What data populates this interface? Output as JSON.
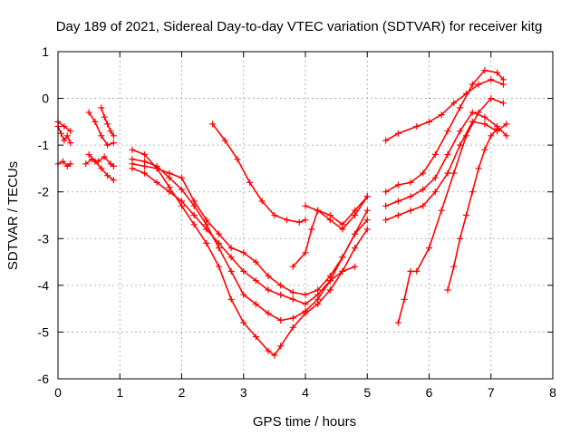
{
  "chart_data": {
    "type": "scatter",
    "title": "Day 189 of 2021, Sidereal Day-to-day VTEC variation (SDTVAR) for receiver kitg",
    "xlabel": "GPS time / hours",
    "ylabel": "SDTVAR / TECUs",
    "xlim": [
      0,
      8
    ],
    "ylim": [
      -6,
      1
    ],
    "xticks": [
      0,
      1,
      2,
      3,
      4,
      5,
      6,
      7,
      8
    ],
    "yticks": [
      -6,
      -5,
      -4,
      -3,
      -2,
      -1,
      0,
      1
    ],
    "grid": true,
    "marker": "+",
    "color": "#ff0000",
    "series": [
      {
        "x": [
          0.0,
          0.05,
          0.1,
          0.15,
          0.2
        ],
        "y": [
          -0.6,
          -0.75,
          -0.9,
          -0.8,
          -0.95
        ]
      },
      {
        "x": [
          0.0,
          0.08,
          0.15,
          0.2
        ],
        "y": [
          -1.4,
          -1.35,
          -1.45,
          -1.4
        ]
      },
      {
        "x": [
          0.0,
          0.1,
          0.2
        ],
        "y": [
          -0.5,
          -0.6,
          -0.7
        ]
      },
      {
        "x": [
          0.5,
          0.6,
          0.7,
          0.8,
          0.9
        ],
        "y": [
          -0.3,
          -0.5,
          -0.8,
          -1.0,
          -0.95
        ]
      },
      {
        "x": [
          0.5,
          0.6,
          0.7,
          0.8,
          0.9
        ],
        "y": [
          -1.2,
          -1.35,
          -1.5,
          -1.65,
          -1.75
        ]
      },
      {
        "x": [
          0.45,
          0.55,
          0.65,
          0.75,
          0.85,
          0.9
        ],
        "y": [
          -1.4,
          -1.3,
          -1.35,
          -1.25,
          -1.4,
          -1.45
        ]
      },
      {
        "x": [
          0.7,
          0.75,
          0.8,
          0.85,
          0.9
        ],
        "y": [
          -0.2,
          -0.4,
          -0.55,
          -0.7,
          -0.8
        ]
      },
      {
        "x": [
          1.2,
          1.4,
          1.6,
          1.8,
          2.0,
          2.2,
          2.4,
          2.6,
          2.8,
          3.0,
          3.2,
          3.4,
          3.5,
          3.6,
          3.8,
          4.0,
          4.2,
          4.4,
          4.6,
          4.8,
          5.0
        ],
        "y": [
          -1.1,
          -1.2,
          -1.5,
          -1.9,
          -2.3,
          -2.7,
          -3.1,
          -3.6,
          -4.3,
          -4.8,
          -5.1,
          -5.4,
          -5.5,
          -5.3,
          -4.9,
          -4.6,
          -4.4,
          -4.1,
          -3.7,
          -3.2,
          -2.8
        ]
      },
      {
        "x": [
          1.2,
          1.4,
          1.6,
          1.8,
          2.0,
          2.2,
          2.4,
          2.6,
          2.8,
          3.0,
          3.2,
          3.4,
          3.6,
          3.8,
          4.0,
          4.2,
          4.4,
          4.6,
          4.8,
          5.0
        ],
        "y": [
          -1.3,
          -1.35,
          -1.45,
          -1.7,
          -1.95,
          -2.3,
          -2.7,
          -3.2,
          -3.7,
          -4.2,
          -4.4,
          -4.6,
          -4.75,
          -4.7,
          -4.55,
          -4.3,
          -3.9,
          -3.4,
          -2.9,
          -2.4
        ]
      },
      {
        "x": [
          1.2,
          1.4,
          1.6,
          1.8,
          2.0,
          2.2,
          2.4,
          2.6,
          2.8,
          3.0,
          3.2,
          3.4,
          3.6,
          3.8,
          4.0,
          4.2,
          4.4,
          4.6,
          4.8,
          5.0
        ],
        "y": [
          -1.4,
          -1.45,
          -1.5,
          -1.6,
          -1.7,
          -2.2,
          -2.6,
          -2.9,
          -3.2,
          -3.3,
          -3.5,
          -3.8,
          -4.0,
          -4.15,
          -4.2,
          -4.1,
          -3.8,
          -3.4,
          -2.9,
          -2.6
        ]
      },
      {
        "x": [
          1.2,
          1.4,
          1.6,
          1.8,
          2.0,
          2.2,
          2.4,
          2.6,
          2.8,
          3.0,
          3.2,
          3.4,
          3.6,
          3.8,
          4.0,
          4.2,
          4.4,
          4.6,
          4.8
        ],
        "y": [
          -1.5,
          -1.6,
          -1.8,
          -2.0,
          -2.2,
          -2.5,
          -2.8,
          -3.1,
          -3.4,
          -3.7,
          -3.9,
          -4.1,
          -4.2,
          -4.3,
          -4.4,
          -4.2,
          -3.9,
          -3.7,
          -3.6
        ]
      },
      {
        "x": [
          2.5,
          2.7,
          2.9,
          3.1,
          3.3,
          3.5,
          3.7,
          3.9,
          4.0
        ],
        "y": [
          -0.55,
          -0.9,
          -1.3,
          -1.8,
          -2.2,
          -2.5,
          -2.6,
          -2.65,
          -2.6
        ]
      },
      {
        "x": [
          3.8,
          4.0,
          4.1,
          4.2,
          4.4,
          4.6,
          4.8,
          5.0
        ],
        "y": [
          -3.6,
          -3.3,
          -2.8,
          -2.4,
          -2.5,
          -2.7,
          -2.4,
          -2.1
        ]
      },
      {
        "x": [
          4.0,
          4.2,
          4.4,
          4.6,
          4.8,
          5.0
        ],
        "y": [
          -2.3,
          -2.4,
          -2.6,
          -2.8,
          -2.5,
          -2.1
        ]
      },
      {
        "x": [
          5.3,
          5.5,
          5.8,
          6.0,
          6.2,
          6.4,
          6.6,
          6.8,
          7.0,
          7.2
        ],
        "y": [
          -0.9,
          -0.75,
          -0.6,
          -0.5,
          -0.35,
          -0.1,
          0.1,
          0.3,
          0.4,
          0.3
        ]
      },
      {
        "x": [
          5.3,
          5.5,
          5.7,
          5.9,
          6.1,
          6.3,
          6.5,
          6.7,
          6.9,
          7.1,
          7.2
        ],
        "y": [
          -2.0,
          -1.85,
          -1.8,
          -1.6,
          -1.2,
          -0.7,
          -0.2,
          0.3,
          0.6,
          0.55,
          0.4
        ]
      },
      {
        "x": [
          5.3,
          5.5,
          5.7,
          5.9,
          6.1,
          6.3,
          6.5,
          6.7,
          6.9,
          7.1,
          7.25
        ],
        "y": [
          -2.3,
          -2.2,
          -2.1,
          -1.95,
          -1.7,
          -1.2,
          -0.7,
          -0.3,
          -0.4,
          -0.6,
          -0.8
        ]
      },
      {
        "x": [
          5.3,
          5.5,
          5.7,
          5.9,
          6.1,
          6.3,
          6.5,
          6.7,
          6.9,
          7.1,
          7.25
        ],
        "y": [
          -2.6,
          -2.5,
          -2.4,
          -2.3,
          -2.0,
          -1.6,
          -1.0,
          -0.5,
          -0.55,
          -0.7,
          -0.55
        ]
      },
      {
        "x": [
          5.5,
          5.6,
          5.7,
          5.8,
          6.0,
          6.2,
          6.4,
          6.6,
          6.8,
          7.0,
          7.2
        ],
        "y": [
          -4.8,
          -4.3,
          -3.7,
          -3.7,
          -3.2,
          -2.4,
          -1.6,
          -0.8,
          -0.3,
          0.0,
          -0.1
        ]
      },
      {
        "x": [
          6.3,
          6.4,
          6.5,
          6.6,
          6.7,
          6.8,
          6.9,
          7.0,
          7.1
        ],
        "y": [
          -4.1,
          -3.6,
          -3.0,
          -2.5,
          -2.0,
          -1.5,
          -1.1,
          -0.8,
          -0.65
        ]
      }
    ]
  }
}
